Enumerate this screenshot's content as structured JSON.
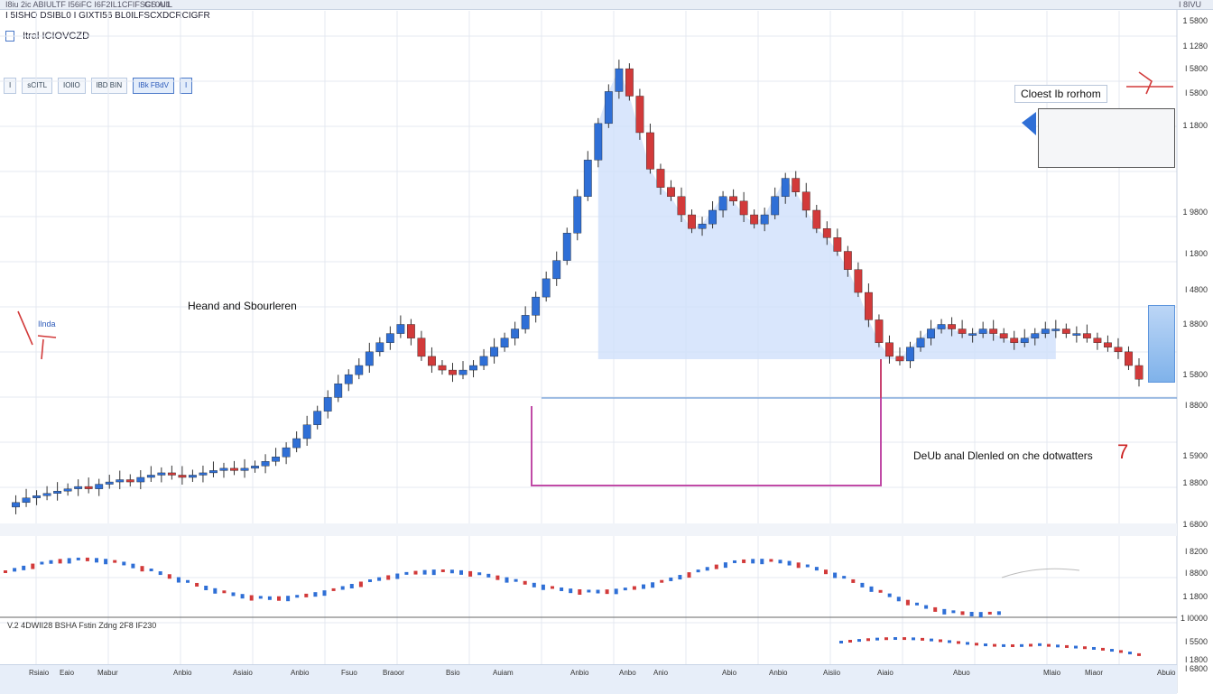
{
  "window": {
    "top_strip": "I8iu 2ic ABIULTF I56iFC I6F2IL1CFIFSCS AI1",
    "top_strip_right": "GI 0UIL",
    "top_right": "I 8IVU",
    "subtitle": "I 5ISHO DSIBL0 I GIXTI56 BL0ILFSCXDCRCIGFR",
    "ticker": "Itral ICIOVCZD"
  },
  "toolbar": {
    "buttons": [
      "I",
      "sOITL",
      "IOIlO",
      "lBD BIN",
      "IBk FBdV"
    ],
    "end_icon": "I"
  },
  "annotations": {
    "head_shoulders": "Heand and Sbourleren",
    "closest_bottom": "Cloest Ib rorhom",
    "double_bottom": "DeUb anal Dlenled on che  dotwatters",
    "left_tag": "Ilnda",
    "seven_mark": "7"
  },
  "indicator": {
    "title": "V.2 4DWII28 BSHA Fstin Zdng 2F8 IF230"
  },
  "y_axis": [
    "1 5800",
    "1 1280",
    "I 5800",
    "I 5800",
    "1 1800",
    "1 9800",
    "I 1800",
    "I 4800",
    "1 8800",
    "1 5800",
    "I 8800",
    "1 5900",
    "1 8800",
    "1 6800",
    "I 8200",
    "I 8800",
    "1 1800",
    "1 I0000",
    "I 5500",
    "I 1800",
    "I 6800"
  ],
  "x_axis": [
    "Rsiaio",
    "Eaio",
    "Mabur",
    "Anbio",
    "Asiaio",
    "Anbio",
    "Fsuo",
    "Braoor",
    "Bsio",
    "Auiam",
    "Anbio",
    "Anbo",
    "Anio",
    "Abio",
    "Anbio",
    "Aisiio",
    "Aiaio",
    "Abuo",
    "Mlaio",
    "Miaor",
    "Abuio"
  ],
  "colors": {
    "bull": "#2f6fd6",
    "bear": "#d23a3a",
    "fill": "#cfe0fb",
    "neckline": "#6f9ed8",
    "magenta": "#c04aa6",
    "grid": "#e4e9f1"
  },
  "chart_data": {
    "type": "line",
    "title": "",
    "xlabel": "",
    "ylabel": "",
    "series": [
      {
        "values": [
          2,
          3,
          4,
          4.5,
          5,
          5.5,
          6,
          6.5,
          6,
          7,
          7.5,
          8,
          7.5,
          8.5,
          9,
          9.5,
          9,
          8.5,
          9,
          9.5,
          10,
          10.5,
          10,
          10.5,
          11,
          12,
          13,
          15,
          17,
          20,
          23,
          26,
          29,
          31,
          33,
          36,
          38,
          40,
          42,
          39,
          35,
          33,
          32,
          31,
          32,
          33,
          35,
          37,
          39,
          41,
          44,
          48,
          52,
          56,
          62,
          70,
          78,
          86,
          93,
          98,
          92,
          84,
          76,
          72,
          70,
          66,
          63,
          64,
          67,
          70,
          69,
          66,
          64,
          66,
          70,
          74,
          71,
          67,
          63,
          61,
          58,
          54,
          49,
          43,
          38,
          35,
          34,
          37,
          39,
          41,
          42,
          41,
          40,
          40,
          41,
          40,
          39,
          38,
          39,
          40,
          41,
          41,
          40,
          40,
          39,
          38,
          37,
          36,
          33,
          30
        ]
      }
    ]
  }
}
